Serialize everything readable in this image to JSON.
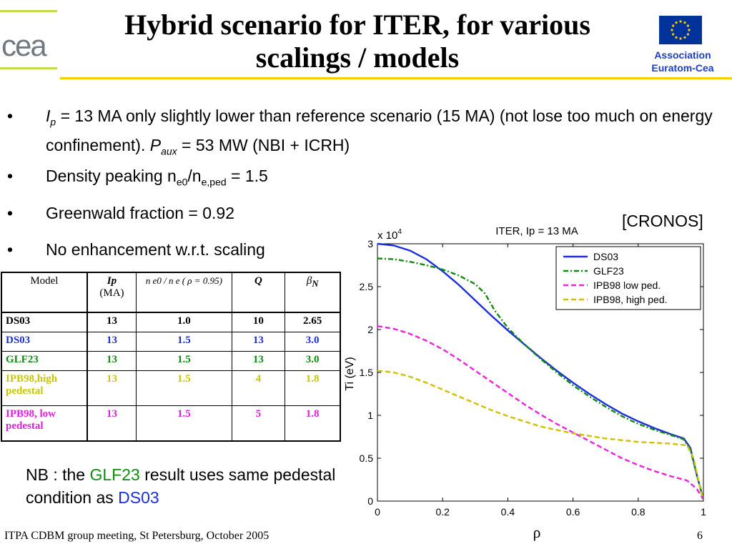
{
  "header": {
    "title_line1": "Hybrid scenario for ITER, for various",
    "title_line2": "scalings / models",
    "logo_text": "cea",
    "assoc_line1": "Association",
    "assoc_line2": "Euratom-Cea",
    "colors": {
      "logo_bar": "#c8dc4b",
      "title_rule": "#f2d100",
      "assoc_text": "#1e3cc8",
      "flag_blue": "#003399",
      "flag_star": "#ffcc00"
    }
  },
  "bullets": [
    {
      "symbol": "•",
      "ip_symbol": "I",
      "ip_sub": "p",
      "ip_text": " = 13 MA only slightly lower than reference scenario (15 MA) (not lose too much on energy confinement). ",
      "paux_symbol": "P",
      "paux_sub": "aux",
      "paux_text": " = 53 MW (NBI + ICRH)"
    },
    {
      "symbol": "•",
      "text_a": "Density peaking n",
      "sub_a": "e0",
      "text_b": "/n",
      "sub_b": "e,ped",
      "text_c": " = 1.5"
    },
    {
      "symbol": "•",
      "text": "Greenwald fraction = 0.92"
    },
    {
      "symbol": "•",
      "text": "No enhancement w.r.t. scaling"
    }
  ],
  "table": {
    "headers": {
      "model": "Model",
      "ip_symbol": "Ip",
      "ip_unit": "(MA)",
      "ratio": "n e0 / n e ( ρ = 0.95)",
      "q": "Q",
      "beta_symbol": "β",
      "beta_sub": "N"
    },
    "rows": [
      {
        "model": "DS03",
        "ip": "13",
        "ratio": "1.0",
        "q": "10",
        "beta": "2.65",
        "color": "#000000"
      },
      {
        "model": "DS03",
        "ip": "13",
        "ratio": "1.5",
        "q": "13",
        "beta": "3.0",
        "color": "#1a2ee0"
      },
      {
        "model": "GLF23",
        "ip": "13",
        "ratio": "1.5",
        "q": "13",
        "beta": "3.0",
        "color": "#128a12"
      },
      {
        "model": "IPB98,high pedestal",
        "ip": "13",
        "ratio": "1.5",
        "q": "4",
        "beta": "1.8",
        "color": "#c8c800"
      },
      {
        "model": "IPB98, low pedestal",
        "ip": "13",
        "ratio": "1.5",
        "q": "5",
        "beta": "1.8",
        "color": "#e020e0"
      }
    ]
  },
  "cronos_label": "[CRONOS]",
  "note": {
    "prefix": "NB : the ",
    "model1": "GLF23",
    "middle": " result uses same pedestal condition as ",
    "model2": "DS03",
    "color1": "#128a12",
    "color2": "#1a2ee0"
  },
  "footer": {
    "text": "ITPA CDBM group meeting, St Petersburg, October 2005",
    "page": "6"
  },
  "chart_data": {
    "type": "line",
    "title": "ITER, Ip = 13 MA",
    "ylabel": "Ti (eV)",
    "xlabel": "ρ",
    "y_multiplier_text": "x 10",
    "y_multiplier_exp": "4",
    "xlim": [
      0,
      1
    ],
    "ylim": [
      0,
      3
    ],
    "xticks": [
      "0",
      "0.2",
      "0.4",
      "0.6",
      "0.8",
      "1"
    ],
    "yticks": [
      "0",
      "0.5",
      "1",
      "1.5",
      "2",
      "2.5",
      "3"
    ],
    "grid": false,
    "legend_position": "top-right",
    "series": [
      {
        "name": "DS03",
        "color": "#1a2ee0",
        "dash": "solid",
        "x": [
          0,
          0.05,
          0.1,
          0.15,
          0.2,
          0.25,
          0.3,
          0.35,
          0.4,
          0.45,
          0.5,
          0.55,
          0.6,
          0.65,
          0.7,
          0.75,
          0.8,
          0.85,
          0.9,
          0.94,
          0.96,
          0.98,
          1.0
        ],
        "y": [
          3.0,
          2.98,
          2.92,
          2.82,
          2.68,
          2.52,
          2.34,
          2.16,
          1.99,
          1.83,
          1.67,
          1.52,
          1.38,
          1.25,
          1.13,
          1.02,
          0.93,
          0.85,
          0.78,
          0.73,
          0.62,
          0.3,
          0.02
        ]
      },
      {
        "name": "GLF23",
        "color": "#128a12",
        "dash": "dashdot",
        "x": [
          0,
          0.05,
          0.1,
          0.15,
          0.2,
          0.25,
          0.3,
          0.33,
          0.36,
          0.4,
          0.45,
          0.5,
          0.55,
          0.6,
          0.65,
          0.7,
          0.75,
          0.8,
          0.85,
          0.9,
          0.94,
          0.96,
          0.98,
          1.0
        ],
        "y": [
          2.83,
          2.82,
          2.79,
          2.75,
          2.7,
          2.63,
          2.53,
          2.42,
          2.22,
          2.02,
          1.83,
          1.66,
          1.5,
          1.35,
          1.22,
          1.1,
          0.99,
          0.9,
          0.83,
          0.77,
          0.72,
          0.6,
          0.3,
          0.02
        ]
      },
      {
        "name": "IPB98 low ped.",
        "color": "#f020e0",
        "dash": "dash",
        "x": [
          0,
          0.05,
          0.1,
          0.15,
          0.2,
          0.25,
          0.3,
          0.35,
          0.4,
          0.45,
          0.5,
          0.55,
          0.6,
          0.65,
          0.7,
          0.75,
          0.8,
          0.85,
          0.9,
          0.95,
          0.98,
          1.0
        ],
        "y": [
          2.04,
          2.01,
          1.95,
          1.87,
          1.77,
          1.65,
          1.52,
          1.39,
          1.26,
          1.13,
          1.01,
          0.9,
          0.8,
          0.7,
          0.6,
          0.5,
          0.42,
          0.35,
          0.29,
          0.24,
          0.14,
          0.02
        ]
      },
      {
        "name": "IPB98, high ped.",
        "color": "#d0c000",
        "dash": "dash",
        "x": [
          0,
          0.05,
          0.1,
          0.15,
          0.2,
          0.25,
          0.3,
          0.35,
          0.4,
          0.45,
          0.5,
          0.55,
          0.6,
          0.65,
          0.7,
          0.75,
          0.8,
          0.85,
          0.9,
          0.95,
          0.97,
          0.99,
          1.0
        ],
        "y": [
          1.52,
          1.5,
          1.45,
          1.38,
          1.3,
          1.22,
          1.14,
          1.06,
          0.99,
          0.93,
          0.87,
          0.83,
          0.79,
          0.76,
          0.73,
          0.71,
          0.69,
          0.68,
          0.67,
          0.65,
          0.5,
          0.15,
          0.02
        ]
      }
    ]
  }
}
